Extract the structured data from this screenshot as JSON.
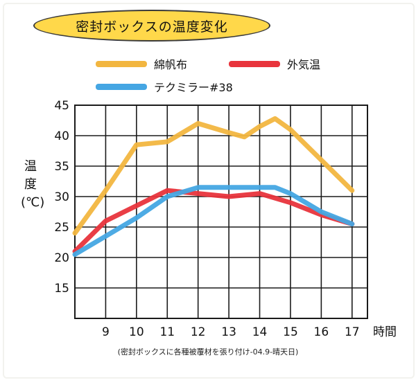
{
  "chart_data": {
    "type": "line",
    "title": "密封ボックスの温度変化",
    "ylabel": "温度 (℃)",
    "xlabel": "時間",
    "note": "(密封ボックスに各種被覆材を張り付け-04.9-晴天日)",
    "ylim": [
      10,
      45
    ],
    "xlim": [
      8,
      17.5
    ],
    "yticks": [
      "15",
      "20",
      "25",
      "30",
      "35",
      "40",
      "45"
    ],
    "xticks": [
      "9",
      "10",
      "11",
      "12",
      "13",
      "14",
      "15",
      "16",
      "17"
    ],
    "grid": true,
    "legend_position": "top",
    "series": [
      {
        "name": "綿帆布",
        "color": "#f2b640",
        "x": [
          8,
          9,
          10,
          11,
          12,
          13,
          13.5,
          14,
          14.5,
          15,
          16,
          17
        ],
        "y": [
          24,
          31,
          38.5,
          39,
          42,
          40.5,
          39.8,
          41.5,
          42.8,
          41,
          36,
          31
        ]
      },
      {
        "name": "外気温",
        "color": "#e8343c",
        "x": [
          8,
          9,
          10,
          11,
          12,
          13,
          14,
          15,
          16,
          17
        ],
        "y": [
          21,
          26,
          28.5,
          31,
          30.5,
          30,
          30.5,
          29,
          27,
          25.5
        ]
      },
      {
        "name": "テクミラー#38",
        "color": "#45a6e3",
        "x": [
          8,
          9,
          10,
          11,
          12,
          13,
          14,
          14.5,
          15,
          16,
          17
        ],
        "y": [
          20.5,
          23.5,
          26.5,
          30,
          31.5,
          31.5,
          31.5,
          31.5,
          30.5,
          27.5,
          25.5
        ]
      }
    ]
  }
}
